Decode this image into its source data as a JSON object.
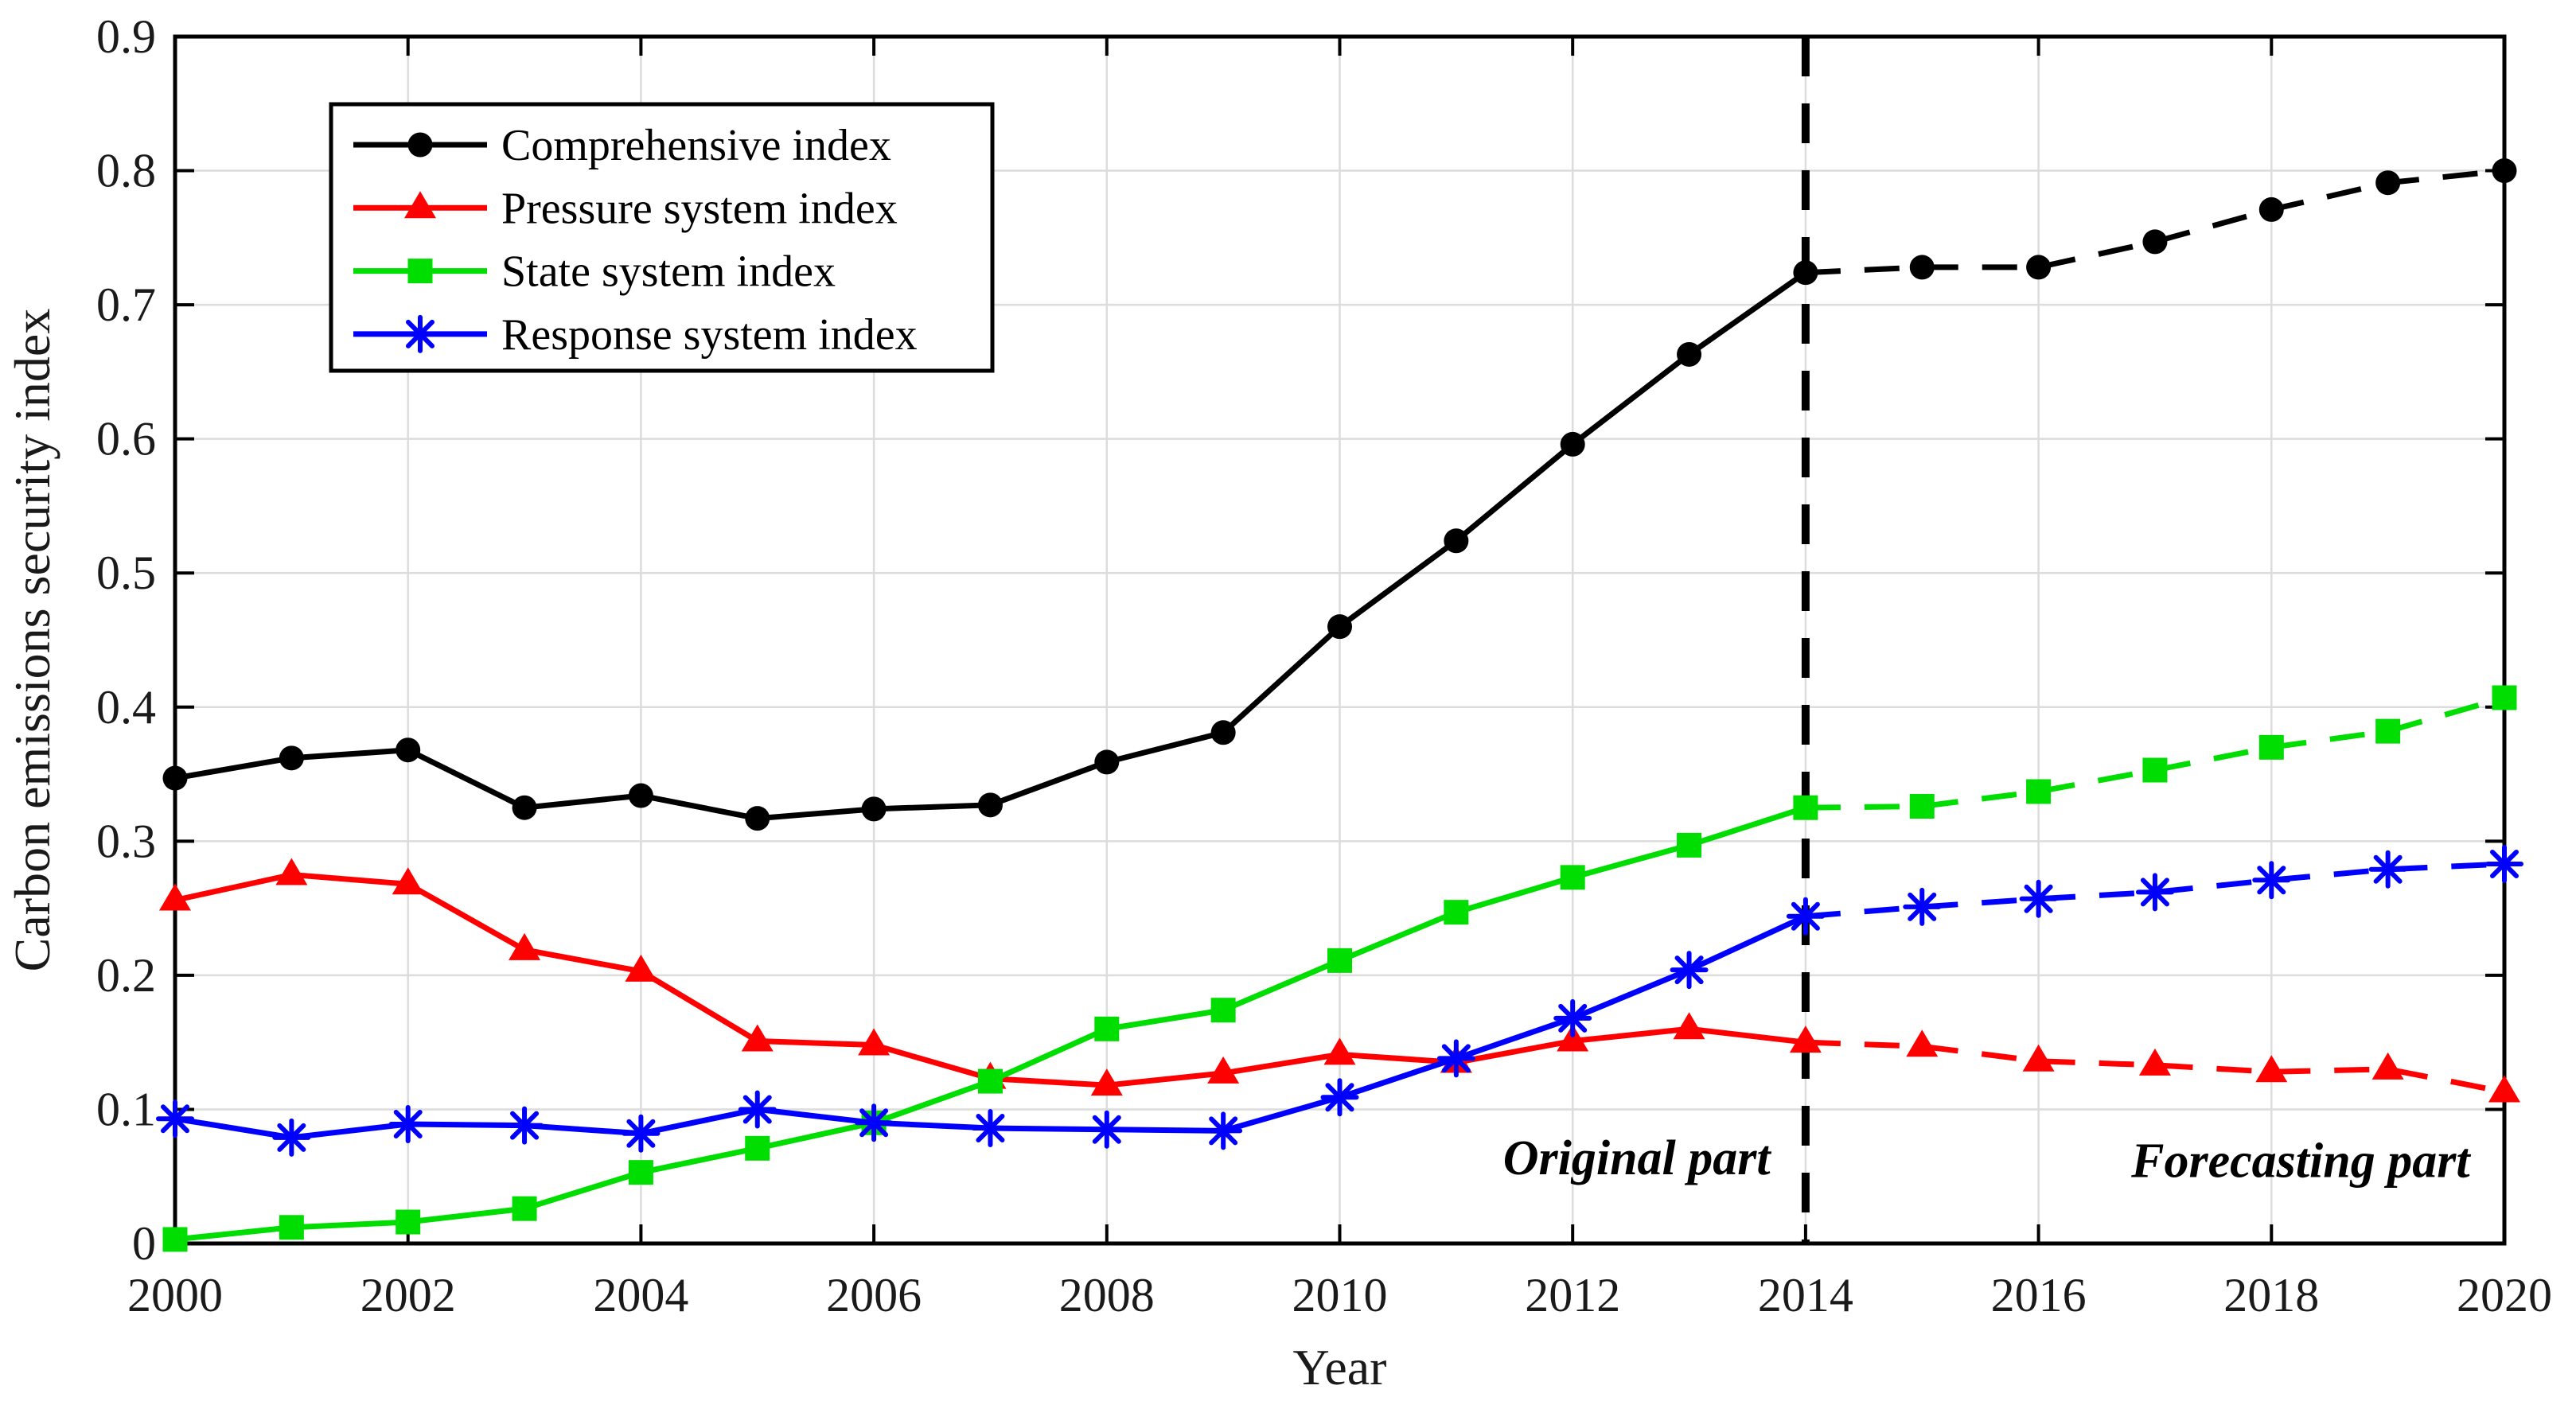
{
  "figure": {
    "description": "Line chart of carbon emissions security index 2000-2020 with original and forecasting parts"
  },
  "chart_data": {
    "type": "line",
    "title": "",
    "xlabel": "Year",
    "ylabel": "Carbon emissions security index",
    "x": [
      2000,
      2001,
      2002,
      2003,
      2004,
      2005,
      2006,
      2007,
      2008,
      2009,
      2010,
      2011,
      2012,
      2013,
      2014,
      2015,
      2016,
      2017,
      2018,
      2019,
      2020
    ],
    "x_tick_labels": [
      "2000",
      "2002",
      "2004",
      "2006",
      "2008",
      "2010",
      "2012",
      "2014",
      "2016",
      "2018",
      "2020"
    ],
    "x_tick_values": [
      2000,
      2002,
      2004,
      2006,
      2008,
      2010,
      2012,
      2014,
      2016,
      2018,
      2020
    ],
    "xlim": [
      2000,
      2020
    ],
    "ylim": [
      0,
      0.9
    ],
    "y_tick_labels": [
      "0",
      "0.1",
      "0.2",
      "0.3",
      "0.4",
      "0.5",
      "0.6",
      "0.7",
      "0.8",
      "0.9"
    ],
    "y_tick_values": [
      0,
      0.1,
      0.2,
      0.3,
      0.4,
      0.5,
      0.6,
      0.7,
      0.8,
      0.9
    ],
    "grid": true,
    "grid_color": "#dcdcdc",
    "box": true,
    "forecast_boundary_year": 2014,
    "separator": {
      "style": "dashed",
      "color": "#000000"
    },
    "annotations": [
      {
        "text": "Original part",
        "x": 2012.55,
        "y": 0.064,
        "style": "bold-italic"
      },
      {
        "text": "Forecasting part",
        "x": 2018.25,
        "y": 0.062,
        "style": "bold-italic"
      }
    ],
    "legend": {
      "position": "top-left",
      "border_color": "#000000",
      "background": "#ffffff"
    },
    "series": [
      {
        "name": "Comprehensive index",
        "color": "#000000",
        "marker": "circle",
        "values": [
          0.347,
          0.362,
          0.368,
          0.325,
          0.334,
          0.317,
          0.324,
          0.327,
          0.359,
          0.381,
          0.46,
          0.524,
          0.596,
          0.663,
          0.724,
          0.728,
          0.728,
          0.747,
          0.771,
          0.791,
          0.8
        ]
      },
      {
        "name": "Pressure system index",
        "color": "#ff0000",
        "marker": "triangle",
        "values": [
          0.256,
          0.275,
          0.268,
          0.219,
          0.203,
          0.151,
          0.148,
          0.123,
          0.118,
          0.127,
          0.141,
          0.135,
          0.151,
          0.16,
          0.15,
          0.147,
          0.136,
          0.133,
          0.128,
          0.13,
          0.113
        ]
      },
      {
        "name": "State system index",
        "color": "#00dd00",
        "marker": "square",
        "values": [
          0.003,
          0.012,
          0.016,
          0.026,
          0.053,
          0.071,
          0.09,
          0.121,
          0.16,
          0.174,
          0.211,
          0.247,
          0.273,
          0.297,
          0.325,
          0.326,
          0.337,
          0.353,
          0.37,
          0.382,
          0.407
        ]
      },
      {
        "name": "Response system index",
        "color": "#0000ff",
        "marker": "asterisk",
        "values": [
          0.093,
          0.079,
          0.089,
          0.088,
          0.082,
          0.1,
          0.09,
          0.086,
          0.085,
          0.084,
          0.109,
          0.138,
          0.168,
          0.204,
          0.244,
          0.251,
          0.257,
          0.262,
          0.271,
          0.279,
          0.283
        ]
      }
    ]
  }
}
